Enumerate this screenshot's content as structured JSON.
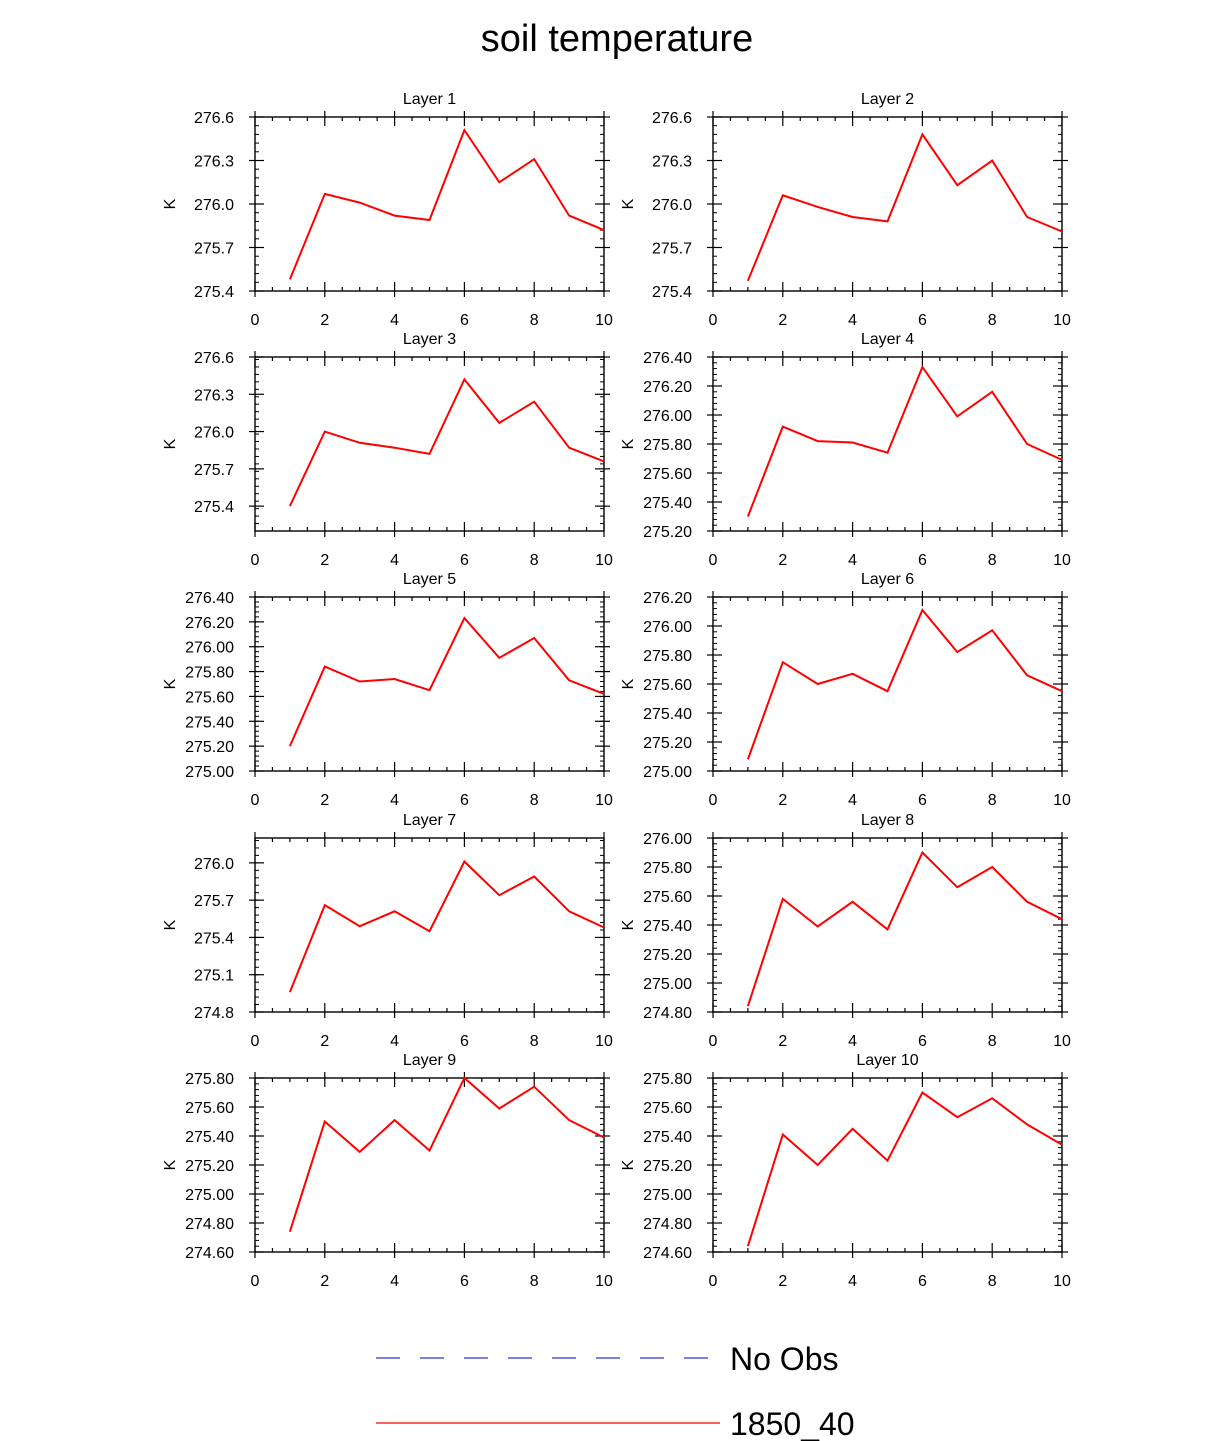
{
  "figure": {
    "title": "soil temperature",
    "line_color": "#ff0000",
    "obs_color": "#3333cc"
  },
  "legend": {
    "items": [
      {
        "label": "No Obs",
        "style": "dashed",
        "color": "#3333cc"
      },
      {
        "label": "1850_40",
        "style": "solid",
        "color": "#ff0000"
      }
    ]
  },
  "chart_data": [
    {
      "type": "line",
      "title": "Layer 1",
      "ylabel": "K",
      "xlim": [
        0,
        10
      ],
      "ylim": [
        275.4,
        276.6
      ],
      "xticks": [
        "0",
        "2",
        "4",
        "6",
        "8",
        "10"
      ],
      "yticks": [
        "275.4",
        "275.7",
        "276.0",
        "276.3",
        "276.6"
      ],
      "series": [
        {
          "name": "1850_40",
          "x": [
            1,
            2,
            3,
            4,
            5,
            6,
            7,
            8,
            9,
            10
          ],
          "y": [
            275.48,
            276.07,
            276.01,
            275.92,
            275.89,
            276.51,
            276.15,
            276.31,
            275.92,
            275.82
          ]
        }
      ]
    },
    {
      "type": "line",
      "title": "Layer 2",
      "ylabel": "K",
      "xlim": [
        0,
        10
      ],
      "ylim": [
        275.4,
        276.6
      ],
      "xticks": [
        "0",
        "2",
        "4",
        "6",
        "8",
        "10"
      ],
      "yticks": [
        "275.4",
        "275.7",
        "276.0",
        "276.3",
        "276.6"
      ],
      "series": [
        {
          "name": "1850_40",
          "x": [
            1,
            2,
            3,
            4,
            5,
            6,
            7,
            8,
            9,
            10
          ],
          "y": [
            275.47,
            276.06,
            275.98,
            275.91,
            275.88,
            276.48,
            276.13,
            276.3,
            275.91,
            275.81
          ]
        }
      ]
    },
    {
      "type": "line",
      "title": "Layer 3",
      "ylabel": "K",
      "xlim": [
        0,
        10
      ],
      "ylim": [
        275.2,
        276.6
      ],
      "xticks": [
        "0",
        "2",
        "4",
        "6",
        "8",
        "10"
      ],
      "yticks": [
        "275.4",
        "275.7",
        "276.0",
        "276.3",
        "276.6"
      ],
      "series": [
        {
          "name": "1850_40",
          "x": [
            1,
            2,
            3,
            4,
            5,
            6,
            7,
            8,
            9,
            10
          ],
          "y": [
            275.4,
            276.0,
            275.91,
            275.87,
            275.82,
            276.42,
            276.07,
            276.24,
            275.87,
            275.76
          ]
        }
      ]
    },
    {
      "type": "line",
      "title": "Layer 4",
      "ylabel": "K",
      "xlim": [
        0,
        10
      ],
      "ylim": [
        275.2,
        276.4
      ],
      "xticks": [
        "0",
        "2",
        "4",
        "6",
        "8",
        "10"
      ],
      "yticks": [
        "275.20",
        "275.40",
        "275.60",
        "275.80",
        "276.00",
        "276.20",
        "276.40"
      ],
      "series": [
        {
          "name": "1850_40",
          "x": [
            1,
            2,
            3,
            4,
            5,
            6,
            7,
            8,
            9,
            10
          ],
          "y": [
            275.3,
            275.92,
            275.82,
            275.81,
            275.74,
            276.33,
            275.99,
            276.16,
            275.8,
            275.69
          ]
        }
      ]
    },
    {
      "type": "line",
      "title": "Layer 5",
      "ylabel": "K",
      "xlim": [
        0,
        10
      ],
      "ylim": [
        275.0,
        276.4
      ],
      "xticks": [
        "0",
        "2",
        "4",
        "6",
        "8",
        "10"
      ],
      "yticks": [
        "275.00",
        "275.20",
        "275.40",
        "275.60",
        "275.80",
        "276.00",
        "276.20",
        "276.40"
      ],
      "series": [
        {
          "name": "1850_40",
          "x": [
            1,
            2,
            3,
            4,
            5,
            6,
            7,
            8,
            9,
            10
          ],
          "y": [
            275.2,
            275.84,
            275.72,
            275.74,
            275.65,
            276.23,
            275.91,
            276.07,
            275.73,
            275.62
          ]
        }
      ]
    },
    {
      "type": "line",
      "title": "Layer 6",
      "ylabel": "K",
      "xlim": [
        0,
        10
      ],
      "ylim": [
        275.0,
        276.2
      ],
      "xticks": [
        "0",
        "2",
        "4",
        "6",
        "8",
        "10"
      ],
      "yticks": [
        "275.00",
        "275.20",
        "275.40",
        "275.60",
        "275.80",
        "276.00",
        "276.20"
      ],
      "series": [
        {
          "name": "1850_40",
          "x": [
            1,
            2,
            3,
            4,
            5,
            6,
            7,
            8,
            9,
            10
          ],
          "y": [
            275.08,
            275.75,
            275.6,
            275.67,
            275.55,
            276.11,
            275.82,
            275.97,
            275.66,
            275.55
          ]
        }
      ]
    },
    {
      "type": "line",
      "title": "Layer 7",
      "ylabel": "K",
      "xlim": [
        0,
        10
      ],
      "ylim": [
        274.8,
        276.2
      ],
      "xticks": [
        "0",
        "2",
        "4",
        "6",
        "8",
        "10"
      ],
      "yticks": [
        "274.8",
        "275.1",
        "275.4",
        "275.7",
        "276.0"
      ],
      "series": [
        {
          "name": "1850_40",
          "x": [
            1,
            2,
            3,
            4,
            5,
            6,
            7,
            8,
            9,
            10
          ],
          "y": [
            274.96,
            275.66,
            275.49,
            275.61,
            275.45,
            276.01,
            275.74,
            275.89,
            275.61,
            275.48
          ]
        }
      ]
    },
    {
      "type": "line",
      "title": "Layer 8",
      "ylabel": "K",
      "xlim": [
        0,
        10
      ],
      "ylim": [
        274.8,
        276.0
      ],
      "xticks": [
        "0",
        "2",
        "4",
        "6",
        "8",
        "10"
      ],
      "yticks": [
        "274.80",
        "275.00",
        "275.20",
        "275.40",
        "275.60",
        "275.80",
        "276.00"
      ],
      "series": [
        {
          "name": "1850_40",
          "x": [
            1,
            2,
            3,
            4,
            5,
            6,
            7,
            8,
            9,
            10
          ],
          "y": [
            274.84,
            275.58,
            275.39,
            275.56,
            275.37,
            275.9,
            275.66,
            275.8,
            275.56,
            275.44
          ]
        }
      ]
    },
    {
      "type": "line",
      "title": "Layer 9",
      "ylabel": "K",
      "xlim": [
        0,
        10
      ],
      "ylim": [
        274.6,
        275.8
      ],
      "xticks": [
        "0",
        "2",
        "4",
        "6",
        "8",
        "10"
      ],
      "yticks": [
        "274.60",
        "274.80",
        "275.00",
        "275.20",
        "275.40",
        "275.60",
        "275.80"
      ],
      "series": [
        {
          "name": "1850_40",
          "x": [
            1,
            2,
            3,
            4,
            5,
            6,
            7,
            8,
            9,
            10
          ],
          "y": [
            274.74,
            275.5,
            275.29,
            275.51,
            275.3,
            275.8,
            275.59,
            275.74,
            275.51,
            275.39
          ]
        }
      ]
    },
    {
      "type": "line",
      "title": "Layer 10",
      "ylabel": "K",
      "xlim": [
        0,
        10
      ],
      "ylim": [
        274.6,
        275.8
      ],
      "xticks": [
        "0",
        "2",
        "4",
        "6",
        "8",
        "10"
      ],
      "yticks": [
        "274.60",
        "274.80",
        "275.00",
        "275.20",
        "275.40",
        "275.60",
        "275.80"
      ],
      "series": [
        {
          "name": "1850_40",
          "x": [
            1,
            2,
            3,
            4,
            5,
            6,
            7,
            8,
            9,
            10
          ],
          "y": [
            274.64,
            275.41,
            275.2,
            275.45,
            275.23,
            275.7,
            275.53,
            275.66,
            275.48,
            275.34
          ]
        }
      ]
    }
  ]
}
